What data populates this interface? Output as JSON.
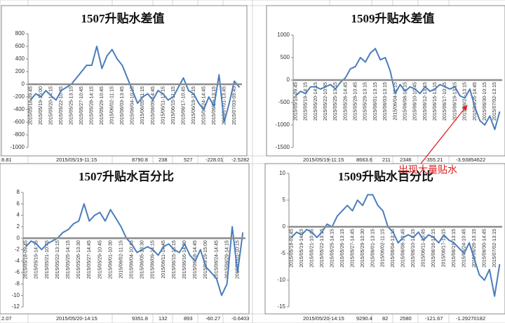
{
  "chart_data": [
    {
      "type": "line",
      "title": "1507升贴水差值",
      "ylim": [
        -1000,
        800
      ],
      "yticks": [
        -1000,
        -800,
        -600,
        -400,
        -200,
        0,
        200,
        400,
        600,
        800
      ],
      "categories": [
        "2015/05/18-09:45",
        null,
        "2015/05/19-15:00",
        null,
        "2015/05/20-14:15",
        null,
        "2015/05/22-10:45",
        null,
        "2015/05/25-13:15",
        null,
        "2015/05/27-10:45",
        null,
        "2015/05/28-14:15",
        null,
        "2015/05/29-10:45",
        null,
        "2015/06/02-11:15",
        null,
        "2015/06/03-13:45",
        null,
        "2015/06/04-10:15",
        null,
        "2015/06/05-11:15",
        null,
        "2015/06/09-14:45",
        null,
        "2015/06/11-13:15",
        null,
        "2015/06/15-11:15",
        null,
        "2015/06/17-10:45",
        null,
        "2015/06/19-11:15",
        null,
        "2015/06/24-14:45",
        null,
        "2015/06/29-13:15",
        null,
        "2015/07/01-13:45",
        null,
        "2015/07/03-09:45",
        null
      ],
      "series": [
        {
          "color": "#4a7ebb",
          "values": [
            -250,
            -150,
            -200,
            -100,
            -180,
            -250,
            -100,
            -50,
            0,
            100,
            200,
            300,
            300,
            600,
            250,
            450,
            550,
            400,
            300,
            100,
            -100,
            -300,
            -200,
            -150,
            -250,
            -100,
            -150,
            -250,
            -200,
            -50,
            100,
            -100,
            -150,
            -300,
            -400,
            -200,
            -350,
            150,
            -600,
            -300,
            50,
            -50
          ]
        }
      ]
    },
    {
      "type": "line",
      "title": "1509升贴水差值",
      "ylim": [
        -1500,
        1000
      ],
      "yticks": [
        -1500,
        -1000,
        -500,
        0,
        500,
        1000
      ],
      "categories": [
        "2015/05/18-09:45",
        null,
        "2015/05/19-14:15",
        null,
        "2015/05/20-14:15",
        null,
        "2015/05/22-10:45",
        null,
        "2015/05/25-13:15",
        null,
        "2015/05/26-14:45",
        null,
        "2015/05/28-10:45",
        null,
        "2015/05/29-13:15",
        null,
        "2015/06/01-13:15",
        null,
        "2015/06/03-13:15",
        null,
        "2015/06/04-11:15",
        null,
        "2015/06/08-13:15",
        null,
        "2015/06/10-10:45",
        null,
        "2015/06/12-13:15",
        null,
        "2015/06/15-13:15",
        null,
        "2015/06/17-10:45",
        null,
        "2015/06/19-13:15",
        null,
        "2015/06/24-13:15",
        null,
        "2015/06/26-14:45",
        null,
        "2015/06/30-10:15",
        null,
        "2015/07/02-13:15",
        null
      ],
      "series": [
        {
          "color": "#4a7ebb",
          "values": [
            -350,
            -250,
            -300,
            -150,
            -150,
            -200,
            -150,
            -100,
            -200,
            -50,
            50,
            250,
            300,
            500,
            400,
            600,
            700,
            450,
            500,
            200,
            -300,
            -100,
            -250,
            -150,
            -200,
            -300,
            -150,
            -250,
            -200,
            -100,
            -150,
            -200,
            -150,
            -350,
            -400,
            -200,
            -600,
            -900,
            -1000,
            -800,
            -1100,
            -700
          ]
        }
      ]
    },
    {
      "type": "line",
      "title": "1507升贴水百分比",
      "ylim": [
        -12,
        8
      ],
      "yticks": [
        -12,
        -10,
        -8,
        -6,
        -4,
        -2,
        0,
        2,
        4,
        6,
        8
      ],
      "categories": [
        "2015/05/18-09:45",
        null,
        "2015/05/19-14:15",
        null,
        "2015/05/21-10:45",
        null,
        "2015/05/22-13:15",
        null,
        "2015/05/25-14:15",
        null,
        "2015/05/26-13:30",
        null,
        "2015/05/27-14:45",
        null,
        "2015/05/29-10:45",
        null,
        "2015/06/01-10:30",
        null,
        "2015/06/02-11:15",
        null,
        "2015/06/04-10:45",
        null,
        "2015/06/05-13:30",
        null,
        "2015/06/09-14:15",
        null,
        "2015/06/11-14:45",
        null,
        "2015/06/15-13:15",
        null,
        "2015/06/16-14:00",
        null,
        "2015/06/18-14:45",
        null,
        "2015/06/19-15:00",
        null,
        "2015/06/24-14:45",
        null,
        "2015/06/29-14:15",
        null,
        "2015/07/01-10:15",
        null
      ],
      "series": [
        {
          "color": "#4a7ebb",
          "values": [
            -1.5,
            -0.5,
            -1,
            -2,
            -1,
            -0.5,
            0,
            1,
            1.5,
            2.5,
            3,
            6,
            3,
            4,
            4.5,
            3,
            5,
            3.5,
            2,
            0,
            -1,
            -2.5,
            -2,
            -1.5,
            -2,
            -3,
            -1.5,
            -1,
            -2,
            -2.5,
            -1,
            -3,
            -4,
            -2,
            -5,
            -6,
            -7,
            -10,
            -8,
            2,
            -6,
            1
          ]
        }
      ]
    },
    {
      "type": "line",
      "title": "1509升贴水百分比",
      "ylim": [
        -15,
        10
      ],
      "yticks": [
        -15,
        -10,
        -5,
        0,
        5,
        10
      ],
      "categories": [
        "2015/05/18-09:45",
        null,
        "2015/05/19-14:15",
        null,
        "2015/05/21-10:45",
        null,
        "2015/05/22-13:15",
        null,
        "2015/05/25-14:15",
        null,
        "2015/05/26-13:15",
        null,
        "2015/05/27-14:45",
        null,
        "2015/05/29-10:30",
        null,
        "2015/06/01-13:15",
        null,
        "2015/06/02-11:15",
        null,
        "2015/06/04-13:15",
        null,
        "2015/06/08-10:45",
        null,
        "2015/06/10-13:15",
        null,
        "2015/06/11-10:45",
        null,
        "2015/06/16-13:15",
        null,
        "2015/06/17-11:15",
        null,
        "2015/06/19-13:15",
        null,
        "2015/06/24-10:45",
        null,
        "2015/06/26-13:15",
        null,
        "2015/06/30-14:45",
        null,
        "2015/07/02-13:15",
        null
      ],
      "series": [
        {
          "color": "#4a7ebb",
          "values": [
            -2,
            -1,
            -1.5,
            -0.5,
            -1,
            -2,
            -1,
            0.5,
            0,
            2,
            3,
            4,
            3,
            5,
            4,
            6,
            6,
            4,
            3,
            0,
            -1,
            -3,
            -2,
            -1.5,
            -2,
            -1,
            -2.5,
            -1.5,
            -2,
            -3,
            -1.5,
            -2.5,
            -3,
            -4,
            -5,
            -3,
            -6,
            -9,
            -10,
            -8,
            -13,
            -7
          ]
        }
      ]
    }
  ],
  "annotation": "出现大量贴水",
  "sheet": {
    "rows": [
      [
        "8.81",
        "2015/05/19-11:15",
        "8790.8",
        "238",
        "527",
        "-228.01",
        "-2.5282",
        "2015/05/19-11:15",
        "8663.6",
        "211",
        "2346",
        "-355.21",
        "-3.93854622"
      ],
      [
        "2.07",
        "2015/05/20-14:15",
        "9351.8",
        "132",
        "893",
        "-60.27",
        "-0.6403",
        "2015/05/20-14:15",
        "9290.4",
        "82",
        "2580",
        "-121.67",
        "-1.29270182"
      ]
    ]
  }
}
